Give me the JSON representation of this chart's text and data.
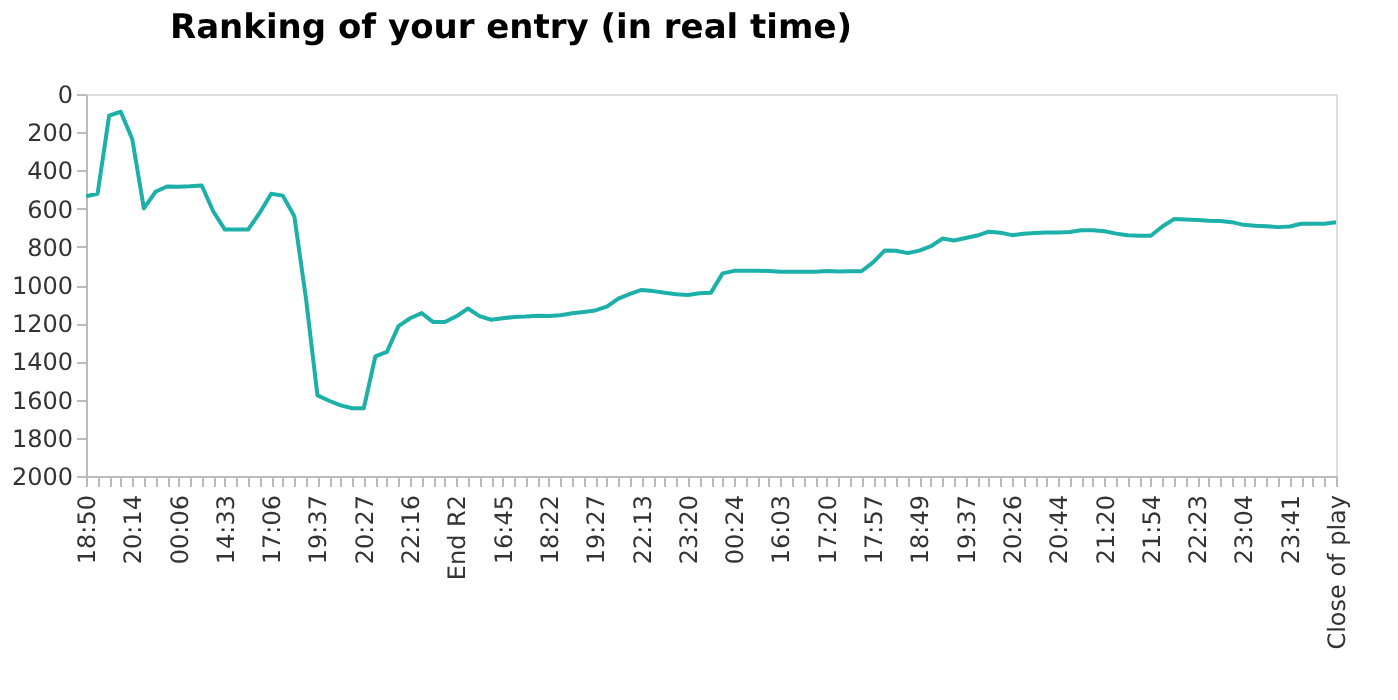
{
  "chart_data": {
    "type": "line",
    "title": "Ranking of your entry (in real time)",
    "categories": [
      "18:50",
      null,
      null,
      null,
      "20:14",
      null,
      null,
      null,
      "00:06",
      null,
      null,
      null,
      "14:33",
      null,
      null,
      null,
      "17:06",
      null,
      null,
      null,
      "19:37",
      null,
      null,
      null,
      "20:27",
      null,
      null,
      null,
      "22:16",
      null,
      null,
      null,
      "End R2",
      null,
      null,
      null,
      "16:45",
      null,
      null,
      null,
      "18:22",
      null,
      null,
      null,
      "19:27",
      null,
      null,
      null,
      "22:13",
      null,
      null,
      null,
      "23:20",
      null,
      null,
      null,
      "00:24",
      null,
      null,
      null,
      "16:03",
      null,
      null,
      null,
      "17:20",
      null,
      null,
      null,
      "17:57",
      null,
      null,
      null,
      "18:49",
      null,
      null,
      null,
      "19:37",
      null,
      null,
      null,
      "20:26",
      null,
      null,
      null,
      "20:44",
      null,
      null,
      null,
      "21:20",
      null,
      null,
      null,
      "21:54",
      null,
      null,
      null,
      "22:23",
      null,
      null,
      null,
      "23:04",
      null,
      null,
      null,
      "23:41",
      null,
      null,
      null,
      "Close of play"
    ],
    "series": [
      {
        "color": "#1cb0a8",
        "values": [
          535,
          522,
          113,
          93,
          237,
          599,
          512,
          484,
          485,
          483,
          479,
          615,
          710,
          710,
          710,
          623,
          522,
          532,
          640,
          1068,
          1578,
          1606,
          1630,
          1645,
          1645,
          1374,
          1350,
          1215,
          1174,
          1147,
          1194,
          1194,
          1164,
          1123,
          1163,
          1182,
          1174,
          1167,
          1165,
          1161,
          1162,
          1158,
          1148,
          1141,
          1133,
          1113,
          1071,
          1046,
          1026,
          1032,
          1041,
          1048,
          1052,
          1043,
          1040,
          939,
          926,
          925,
          925,
          927,
          930,
          931,
          931,
          931,
          927,
          929,
          928,
          928,
          882,
          820,
          821,
          833,
          820,
          797,
          757,
          767,
          754,
          741,
          721,
          726,
          739,
          732,
          728,
          725,
          725,
          722,
          713,
          713,
          719,
          731,
          740,
          742,
          742,
          694,
          655,
          657,
          660,
          664,
          665,
          671,
          685,
          690,
          692,
          697,
          694,
          679,
          679,
          679,
          672
        ]
      }
    ],
    "ylim": [
      2000,
      0
    ],
    "yticks": [
      0,
      200,
      400,
      600,
      800,
      1000,
      1200,
      1400,
      1600,
      1800,
      2000
    ],
    "grid": false,
    "legend": false
  }
}
